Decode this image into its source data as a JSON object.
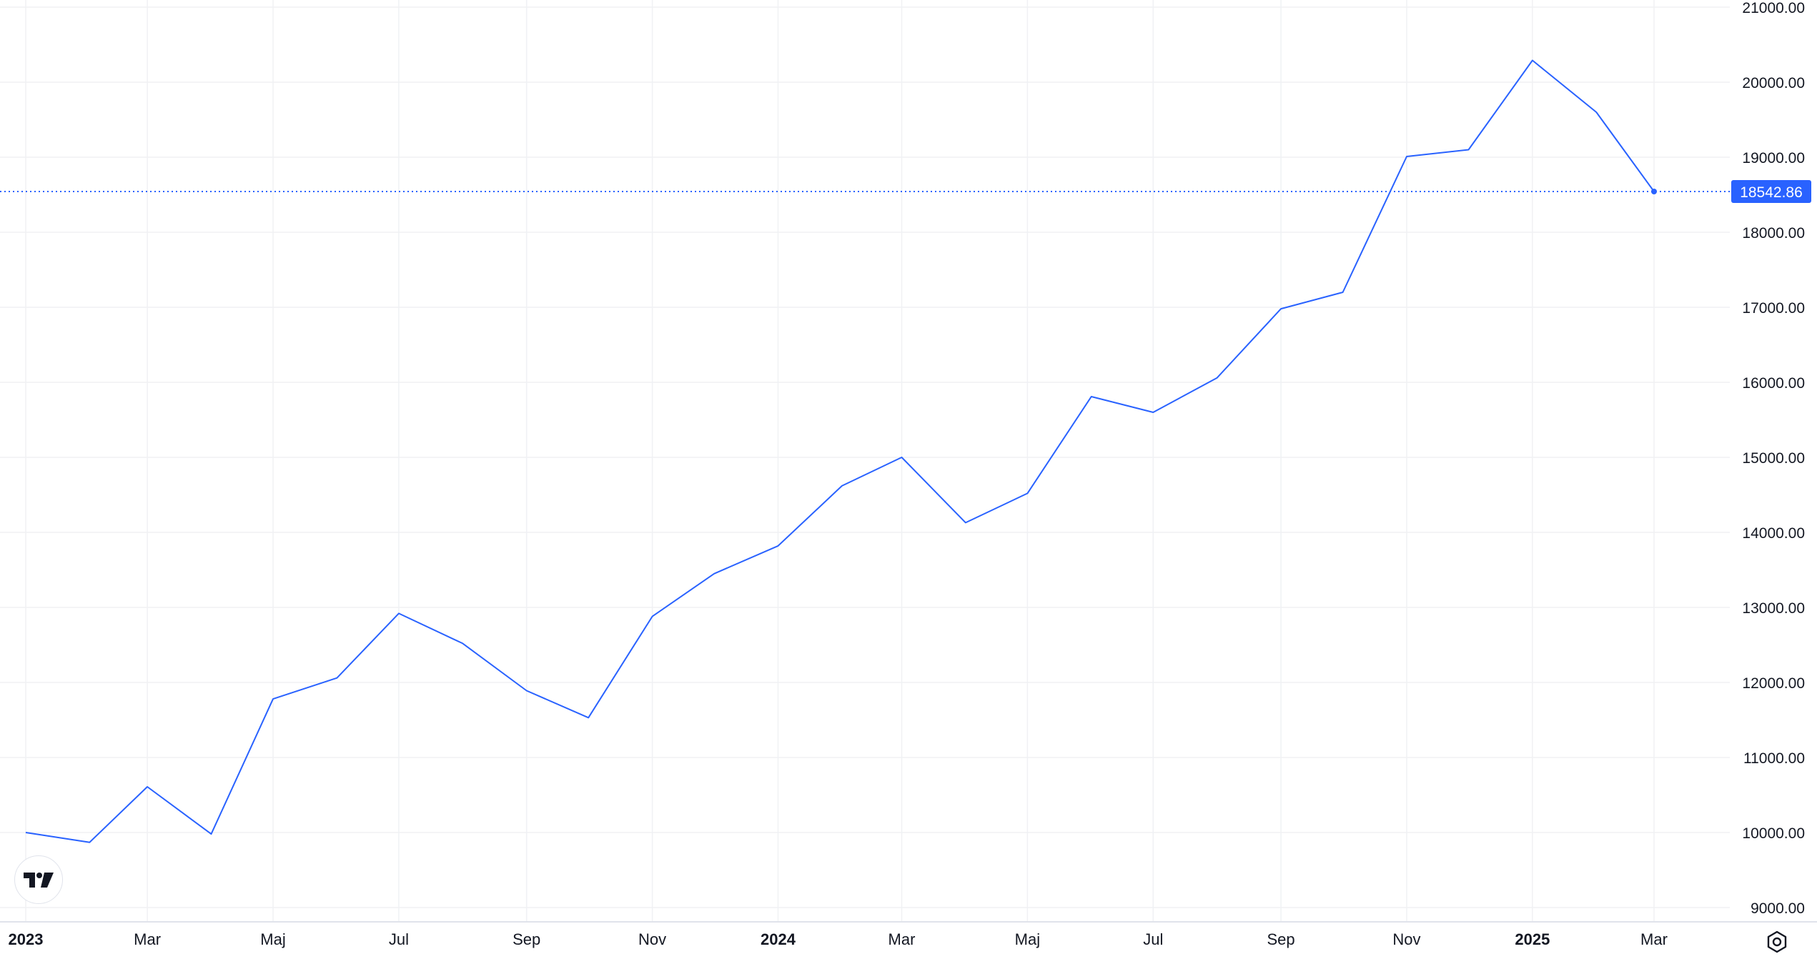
{
  "chart_data": {
    "type": "line",
    "series": [
      {
        "values": [
          [
            "2023-01-01",
            10000
          ],
          [
            "2023-02-01",
            9870
          ],
          [
            "2023-03-01",
            10610
          ],
          [
            "2023-04-01",
            9980
          ],
          [
            "2023-05-01",
            11780
          ],
          [
            "2023-06-01",
            12060
          ],
          [
            "2023-07-01",
            12920
          ],
          [
            "2023-08-01",
            12520
          ],
          [
            "2023-09-01",
            11890
          ],
          [
            "2023-10-01",
            11530
          ],
          [
            "2023-11-01",
            12880
          ],
          [
            "2023-12-01",
            13450
          ],
          [
            "2024-01-01",
            13820
          ],
          [
            "2024-02-01",
            14620
          ],
          [
            "2024-03-01",
            15000
          ],
          [
            "2024-04-01",
            14130
          ],
          [
            "2024-05-01",
            14520
          ],
          [
            "2024-06-01",
            15810
          ],
          [
            "2024-07-01",
            15600
          ],
          [
            "2024-08-01",
            16060
          ],
          [
            "2024-09-01",
            16980
          ],
          [
            "2024-10-01",
            17200
          ],
          [
            "2024-11-01",
            19010
          ],
          [
            "2024-12-01",
            19100
          ],
          [
            "2025-01-01",
            20290
          ],
          [
            "2025-02-01",
            19600
          ],
          [
            "2025-03-01",
            18542.86
          ]
        ]
      }
    ],
    "ylim": [
      9000,
      21000
    ],
    "y_ticks": [
      "9000.00",
      "10000.00",
      "11000.00",
      "12000.00",
      "13000.00",
      "14000.00",
      "15000.00",
      "16000.00",
      "17000.00",
      "18000.00",
      "19000.00",
      "20000.00",
      "21000.00"
    ],
    "x_ticks": [
      {
        "date": "2023-01-01",
        "label": "2023",
        "bold": true
      },
      {
        "date": "2023-03-01",
        "label": "Mar"
      },
      {
        "date": "2023-05-01",
        "label": "Maj"
      },
      {
        "date": "2023-07-01",
        "label": "Jul"
      },
      {
        "date": "2023-09-01",
        "label": "Sep"
      },
      {
        "date": "2023-11-01",
        "label": "Nov"
      },
      {
        "date": "2024-01-01",
        "label": "2024",
        "bold": true
      },
      {
        "date": "2024-03-01",
        "label": "Mar"
      },
      {
        "date": "2024-05-01",
        "label": "Maj"
      },
      {
        "date": "2024-07-01",
        "label": "Jul"
      },
      {
        "date": "2024-09-01",
        "label": "Sep"
      },
      {
        "date": "2024-11-01",
        "label": "Nov"
      },
      {
        "date": "2025-01-01",
        "label": "2025",
        "bold": true
      },
      {
        "date": "2025-03-01",
        "label": "Mar"
      }
    ],
    "last_value": "18542.86",
    "grid": true,
    "y_axis_side": "right",
    "colors": {
      "line": "#2962ff",
      "grid": "#f0f1f4",
      "text": "#131722",
      "badge_text": "#ffffff"
    }
  },
  "ui": {
    "logo_icon": "tradingview-logo-icon",
    "settings_icon": "settings-gear-icon"
  }
}
